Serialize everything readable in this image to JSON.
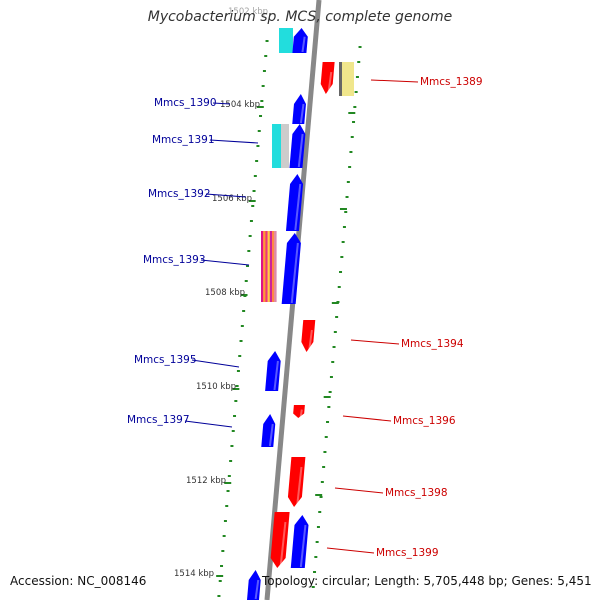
{
  "title": "Mycobacterium sp. MCS, complete genome",
  "footer": {
    "accession": "Accession: NC_008146",
    "topology": "Topology: circular; Length: 5,705,448 bp; Genes: 5,451"
  },
  "colors": {
    "forward": "#0000ff",
    "reverse": "#ff0000",
    "backbone": "#888888",
    "tick_mark": "#228822",
    "gc_yellow": "#f0e68c",
    "gc_cyan": "#22dddd"
  },
  "ticks": [
    {
      "label": "1502 kbp",
      "kbp": 1502
    },
    {
      "label": "1504 kbp",
      "kbp": 1504
    },
    {
      "label": "1506 kbp",
      "kbp": 1506
    },
    {
      "label": "1508 kbp",
      "kbp": 1508
    },
    {
      "label": "1510 kbp",
      "kbp": 1510
    },
    {
      "label": "1512 kbp",
      "kbp": 1512
    },
    {
      "label": "1514 kbp",
      "kbp": 1514
    }
  ],
  "genes": [
    {
      "name": "Mmcs_1389",
      "strand": "reverse",
      "side": "right"
    },
    {
      "name": "Mmcs_1390",
      "strand": "forward",
      "side": "left"
    },
    {
      "name": "Mmcs_1391",
      "strand": "forward",
      "side": "left"
    },
    {
      "name": "Mmcs_1392",
      "strand": "forward",
      "side": "left"
    },
    {
      "name": "Mmcs_1393",
      "strand": "forward",
      "side": "left"
    },
    {
      "name": "Mmcs_1394",
      "strand": "reverse",
      "side": "right"
    },
    {
      "name": "Mmcs_1395",
      "strand": "forward",
      "side": "left"
    },
    {
      "name": "Mmcs_1396",
      "strand": "reverse",
      "side": "right"
    },
    {
      "name": "Mmcs_1397",
      "strand": "forward",
      "side": "left"
    },
    {
      "name": "Mmcs_1398",
      "strand": "reverse",
      "side": "right"
    },
    {
      "name": "Mmcs_1399",
      "strand": "reverse",
      "side": "right"
    }
  ]
}
